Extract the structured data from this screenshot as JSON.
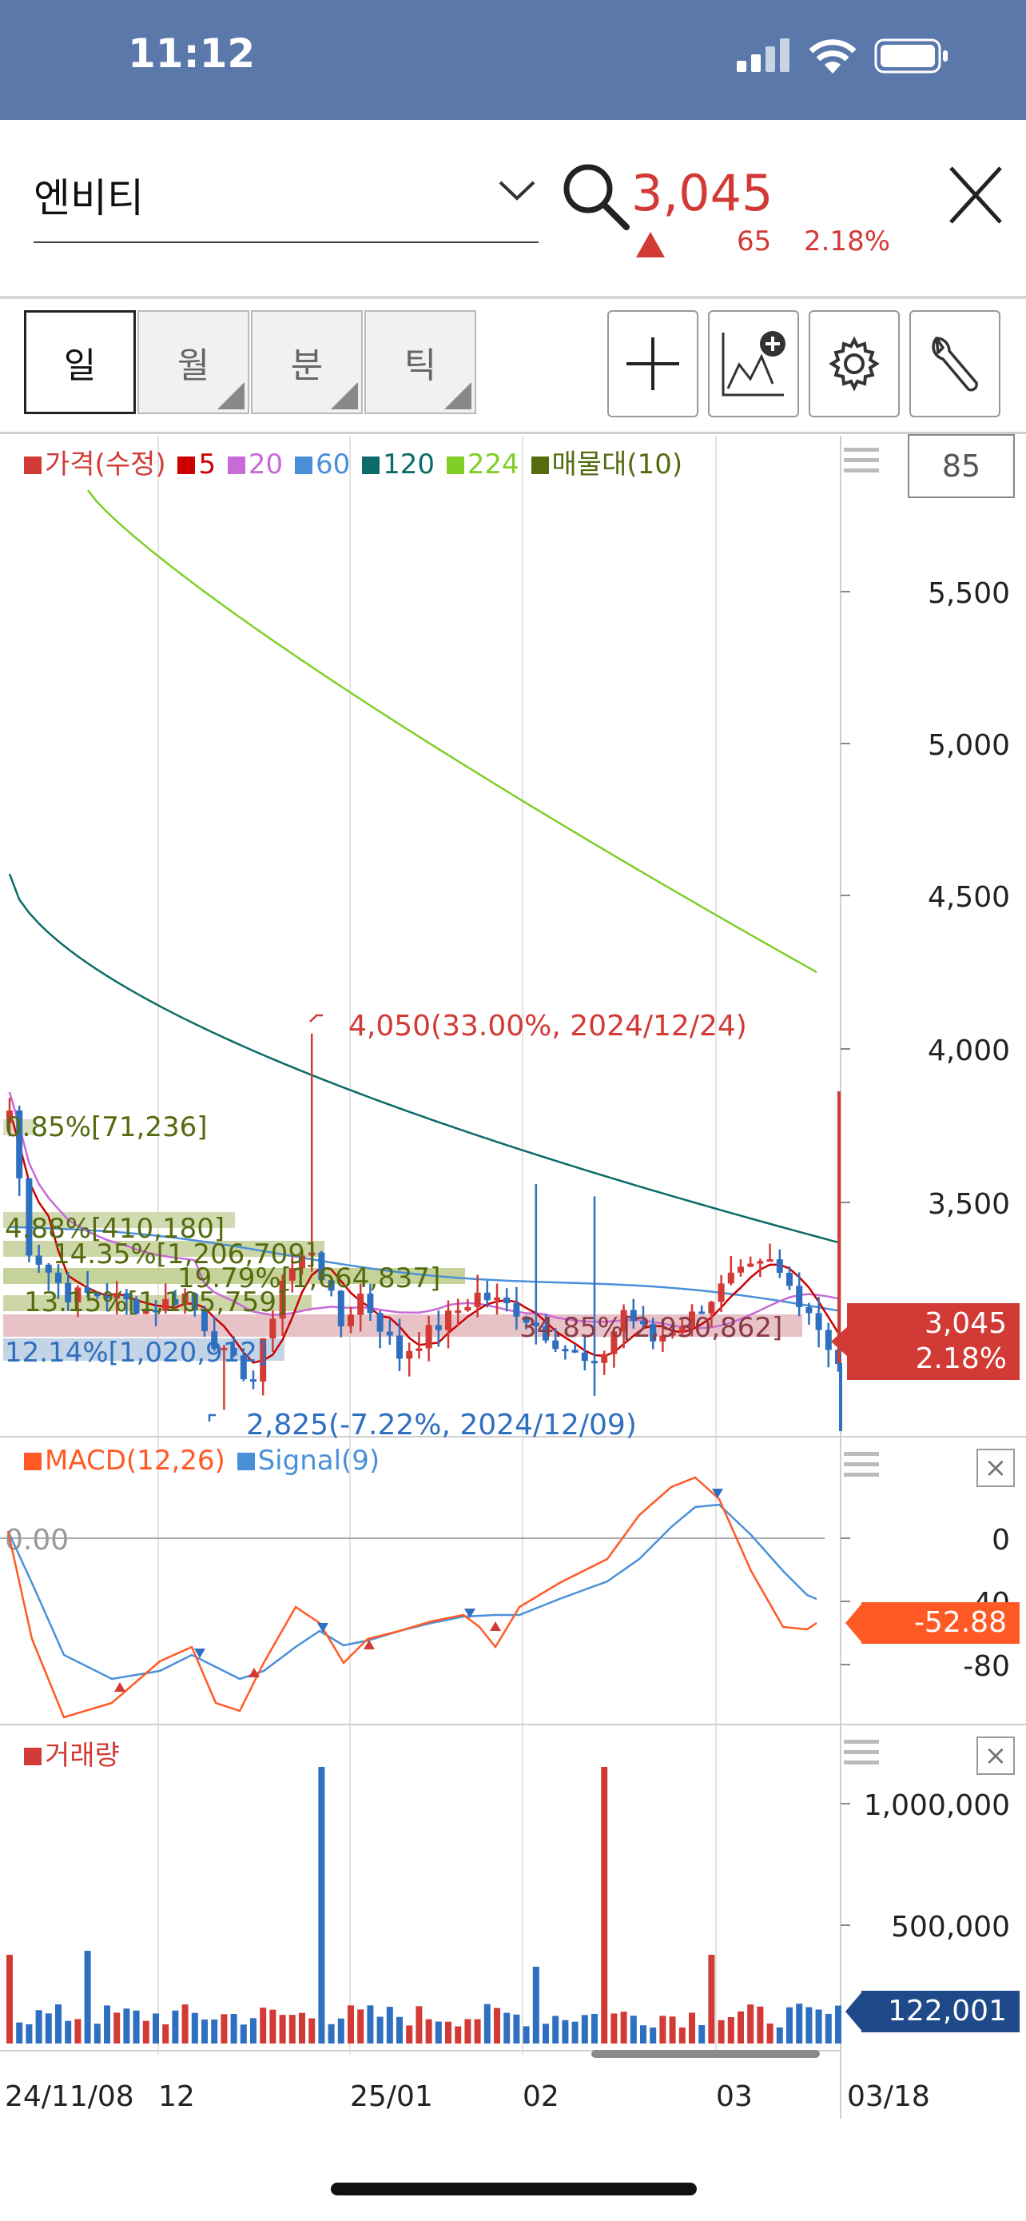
{
  "status_bar": {
    "time": "11:12"
  },
  "header": {
    "stock_name": "엔비티",
    "price": "3,045",
    "change": "65",
    "change_pct": "2.18%",
    "up_color": "#d23a36"
  },
  "periods": [
    {
      "label": "일",
      "active": true
    },
    {
      "label": "월",
      "active": false
    },
    {
      "label": "분",
      "active": false
    },
    {
      "label": "틱",
      "active": false
    }
  ],
  "tools": [
    "crosshair-icon",
    "add-indicator-icon",
    "gear-icon",
    "wrench-icon"
  ],
  "price_chart": {
    "legend": [
      {
        "label": "가격(수정)",
        "color": "#d23a36"
      },
      {
        "label": "5",
        "color": "#cc0000"
      },
      {
        "label": "20",
        "color": "#c86ad8"
      },
      {
        "label": "60",
        "color": "#4a90d9"
      },
      {
        "label": "120",
        "color": "#0c6b66"
      },
      {
        "label": "224",
        "color": "#7fcf27"
      },
      {
        "label": "매물대(10)",
        "color": "#556b10"
      }
    ],
    "zoom": "85",
    "axis_labels": [
      "5,500",
      "5,000",
      "4,500",
      "4,000",
      "3,500"
    ],
    "high_annotation": "4,050(33.00%, 2024/12/24)",
    "low_annotation": "2,825(-7.22%, 2024/12/09)",
    "volume_profile": [
      "0.85%[71,236]",
      "4.88%[410,180]",
      "14.35%[1,206,709]",
      "19.79%[1,664,837]",
      "13.15%[1,105,759]",
      "34.85%[2,930,862]",
      "12.14%[1,020,912]"
    ],
    "price_tag": "3,045",
    "price_tag_pct": "2.18%"
  },
  "macd": {
    "legend_macd": "MACD(12,26)",
    "legend_signal": "Signal(9)",
    "macd_color": "#ff5a26",
    "signal_color": "#4a90d9",
    "zero_label": "0.00",
    "axis_labels": [
      "0",
      "-40",
      "-80"
    ],
    "value_tag": "-52.88"
  },
  "volume": {
    "legend": "거래량",
    "axis_labels": [
      "1,000,000",
      "500,000"
    ],
    "value_tag": "122,001"
  },
  "x_axis": {
    "labels": [
      "24/11/08",
      "12",
      "25/01",
      "02",
      "03"
    ],
    "end_label": "03/18"
  }
}
